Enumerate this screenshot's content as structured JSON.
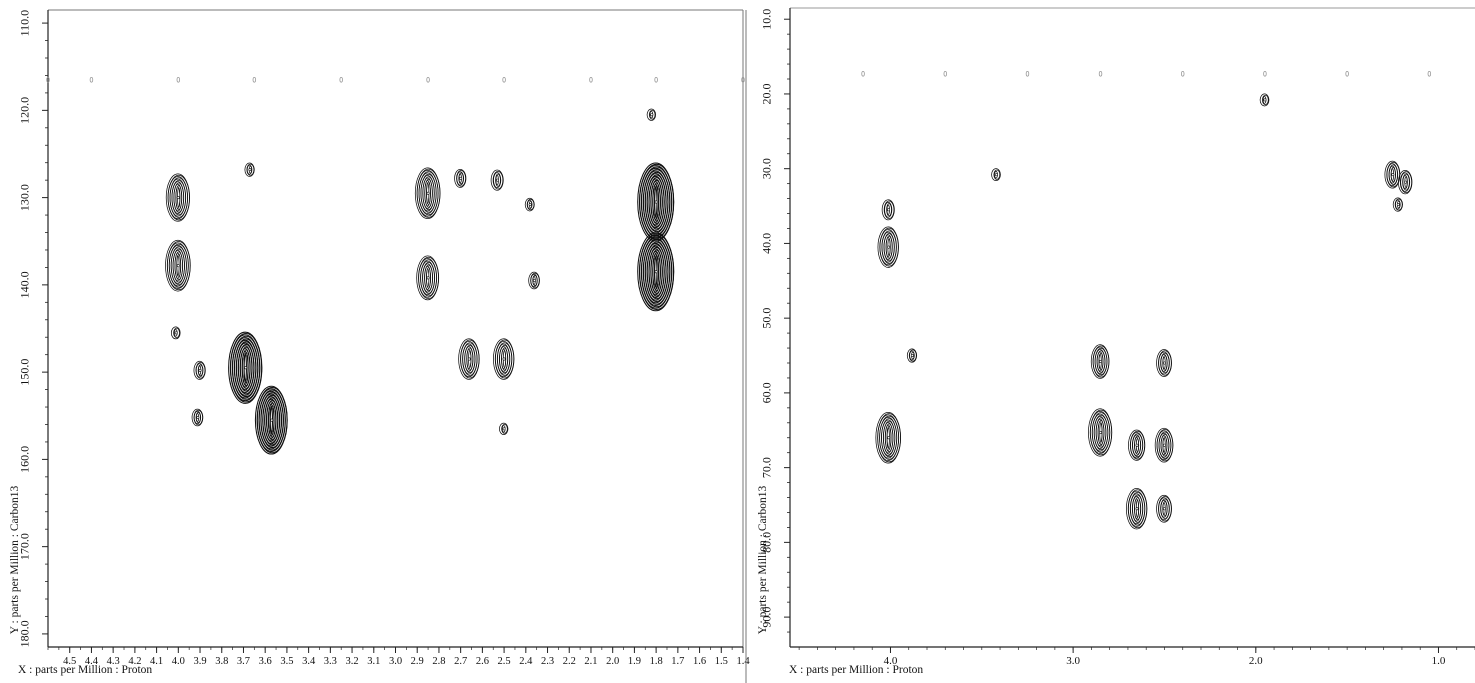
{
  "charts": [
    {
      "id": "left",
      "type": "contour",
      "x_label": "X : parts per Million : Proton",
      "y_label": "Y : parts per Million : Carbon13",
      "x_range": [
        4.6,
        1.4
      ],
      "y_range": [
        108.5,
        181.5
      ],
      "x_ticks": [
        "4.5",
        "4.4",
        "4.3",
        "4.2",
        "4.1",
        "4.0",
        "3.9",
        "3.8",
        "3.7",
        "3.6",
        "3.5",
        "3.4",
        "3.3",
        "3.2",
        "3.1",
        "3.0",
        "2.9",
        "2.8",
        "2.7",
        "2.6",
        "2.5",
        "2.4",
        "2.3",
        "2.2",
        "2.1",
        "2.0",
        "1.9",
        "1.8",
        "1.7",
        "1.6",
        "1.5",
        "1.4"
      ],
      "y_ticks": [
        "110.0",
        "120.0",
        "130.0",
        "140.0",
        "150.0",
        "160.0",
        "170.0",
        "180.0"
      ],
      "dotted_row_y": 116.5,
      "dotted_row_x": [
        4.6,
        4.4,
        4.0,
        3.65,
        3.25,
        2.85,
        2.5,
        2.1,
        1.8,
        1.4
      ]
    },
    {
      "id": "right",
      "type": "contour",
      "x_label": "X : parts per Million : Proton",
      "y_label": "Y : parts per Million : Carbon13",
      "x_range": [
        4.55,
        0.8
      ],
      "y_range": [
        8.5,
        94.0
      ],
      "x_ticks": [
        "4.0",
        "3.0",
        "2.0",
        "1.0"
      ],
      "y_ticks": [
        "10.0",
        "20.0",
        "30.0",
        "40.0",
        "50.0",
        "60.0",
        "70.0",
        "80.0",
        "90.0"
      ],
      "dotted_row_y": 17.3,
      "dotted_row_x": [
        4.15,
        3.7,
        3.25,
        2.85,
        2.4,
        1.95,
        1.5,
        1.05
      ]
    }
  ],
  "chart_data": [
    {
      "type": "contour",
      "x_label": "X : parts per Million : Proton",
      "y_label": "Y : parts per Million : Carbon13",
      "x_range": [
        4.6,
        1.4
      ],
      "y_range": [
        108.5,
        181.5
      ],
      "peaks": [
        {
          "x": 4.0,
          "y": 130.0,
          "intensity": 0.55
        },
        {
          "x": 4.0,
          "y": 137.8,
          "intensity": 0.6
        },
        {
          "x": 3.67,
          "y": 126.8,
          "intensity": 0.05
        },
        {
          "x": 3.9,
          "y": 149.8,
          "intensity": 0.12
        },
        {
          "x": 3.91,
          "y": 155.2,
          "intensity": 0.1
        },
        {
          "x": 4.01,
          "y": 145.5,
          "intensity": 0.03
        },
        {
          "x": 3.69,
          "y": 149.5,
          "intensity": 0.9
        },
        {
          "x": 3.57,
          "y": 155.5,
          "intensity": 0.85
        },
        {
          "x": 2.85,
          "y": 129.5,
          "intensity": 0.6
        },
        {
          "x": 2.85,
          "y": 139.2,
          "intensity": 0.5
        },
        {
          "x": 2.7,
          "y": 127.8,
          "intensity": 0.12
        },
        {
          "x": 2.53,
          "y": 128.0,
          "intensity": 0.15
        },
        {
          "x": 2.38,
          "y": 130.8,
          "intensity": 0.04
        },
        {
          "x": 2.36,
          "y": 139.5,
          "intensity": 0.1
        },
        {
          "x": 2.66,
          "y": 148.5,
          "intensity": 0.45
        },
        {
          "x": 2.5,
          "y": 148.5,
          "intensity": 0.45
        },
        {
          "x": 2.5,
          "y": 156.5,
          "intensity": 0.02
        },
        {
          "x": 1.8,
          "y": 130.5,
          "intensity": 1.0
        },
        {
          "x": 1.8,
          "y": 138.5,
          "intensity": 1.0
        },
        {
          "x": 1.82,
          "y": 120.5,
          "intensity": 0.02
        }
      ]
    },
    {
      "type": "contour",
      "x_label": "X : parts per Million : Proton",
      "y_label": "Y : parts per Million : Carbon13",
      "x_range": [
        4.55,
        0.8
      ],
      "y_range": [
        8.5,
        94.0
      ],
      "peaks": [
        {
          "x": 4.01,
          "y": 35.5,
          "intensity": 0.15
        },
        {
          "x": 4.01,
          "y": 40.5,
          "intensity": 0.45
        },
        {
          "x": 4.01,
          "y": 66.0,
          "intensity": 0.6
        },
        {
          "x": 3.88,
          "y": 55.0,
          "intensity": 0.05
        },
        {
          "x": 3.42,
          "y": 30.8,
          "intensity": 0.03
        },
        {
          "x": 2.85,
          "y": 55.8,
          "intensity": 0.35
        },
        {
          "x": 2.5,
          "y": 56.0,
          "intensity": 0.25
        },
        {
          "x": 2.85,
          "y": 65.3,
          "intensity": 0.55
        },
        {
          "x": 2.65,
          "y": 67.0,
          "intensity": 0.3
        },
        {
          "x": 2.5,
          "y": 67.0,
          "intensity": 0.35
        },
        {
          "x": 2.65,
          "y": 75.5,
          "intensity": 0.45
        },
        {
          "x": 2.5,
          "y": 75.5,
          "intensity": 0.25
        },
        {
          "x": 1.95,
          "y": 20.8,
          "intensity": 0.03
        },
        {
          "x": 1.25,
          "y": 30.8,
          "intensity": 0.25
        },
        {
          "x": 1.18,
          "y": 31.8,
          "intensity": 0.2
        },
        {
          "x": 1.22,
          "y": 34.8,
          "intensity": 0.05
        }
      ]
    }
  ]
}
